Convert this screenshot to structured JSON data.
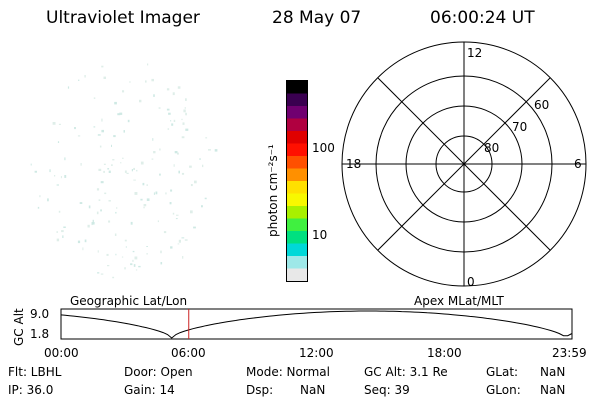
{
  "header": {
    "instrument": "Ultraviolet Imager",
    "date": "28 May 07",
    "time": "06:00:24 UT"
  },
  "colorbar": {
    "unit_label": "photon cm⁻²s⁻¹",
    "tick_labels": [
      "100",
      "10"
    ],
    "colors": [
      "#e8e8e8",
      "#9ee8e8",
      "#00d8d8",
      "#00e080",
      "#40f040",
      "#a8f000",
      "#f8f800",
      "#ffe000",
      "#ff9000",
      "#ff5000",
      "#ff1000",
      "#e00000",
      "#b00040",
      "#700070",
      "#3a0050",
      "#000000"
    ]
  },
  "polar": {
    "mlt_labels": {
      "top": "12",
      "bottom": "0",
      "left": "18",
      "right": "6"
    },
    "lat_labels": [
      "60",
      "70",
      "80"
    ]
  },
  "orbit": {
    "ylabel": "GC Alt",
    "y_ticks": [
      "9.0",
      "1.8"
    ],
    "left_title": "Geographic Lat/Lon",
    "right_title": "Apex MLat/MLT",
    "x_ticks": [
      "00:00",
      "06:00",
      "12:00",
      "18:00",
      "23:59"
    ],
    "cursor_color": "#cc2222"
  },
  "status": {
    "flt": "Flt: LBHL",
    "ip": "IP: 36.0",
    "door": "Door: Open",
    "gain": "Gain: 14",
    "mode": "Mode: Normal",
    "dsp_label": "Dsp:",
    "dsp_value": "NaN",
    "gcalt": "GC Alt: 3.1 Re",
    "seq": "Seq: 39",
    "glat_label": "GLat:",
    "glat_value": "NaN",
    "glon_label": "GLon:",
    "glon_value": "NaN"
  }
}
